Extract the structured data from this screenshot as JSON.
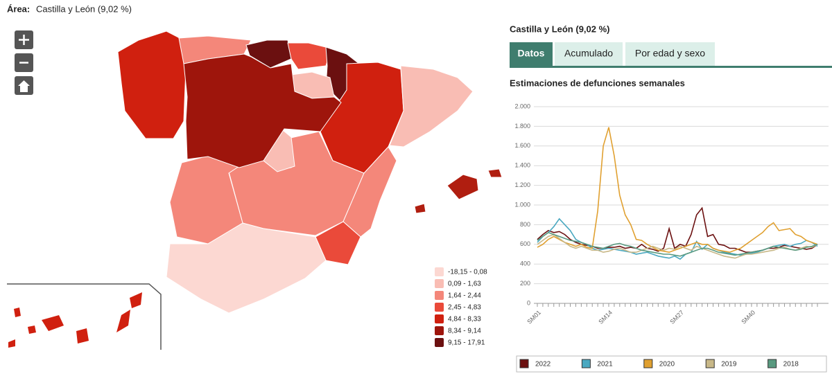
{
  "header": {
    "area_label": "Área:",
    "area_value": "Castilla y León (9,02 %)"
  },
  "map": {
    "legend": [
      {
        "label": "-18,15 - 0,08",
        "color": "#fcd8d2"
      },
      {
        "label": "0,09 - 1,63",
        "color": "#f9bdb4"
      },
      {
        "label": "1,64 - 2,44",
        "color": "#f4877a"
      },
      {
        "label": "2,45 - 4,83",
        "color": "#ea4a3a"
      },
      {
        "label": "4,84 - 8,33",
        "color": "#d0200f"
      },
      {
        "label": "8,34 - 9,14",
        "color": "#9e150c"
      },
      {
        "label": "9,15 - 17,91",
        "color": "#6b1010"
      }
    ]
  },
  "panel": {
    "title": "Castilla y León (9,02 %)",
    "tabs": [
      "Datos",
      "Acumulado",
      "Por edad y sexo"
    ]
  },
  "chart_data": {
    "type": "line",
    "title": "Estimaciones de defunciones semanales",
    "categories": [
      "SM01",
      null,
      null,
      null,
      null,
      null,
      null,
      null,
      null,
      null,
      null,
      null,
      null,
      "SM14",
      null,
      null,
      null,
      null,
      null,
      null,
      null,
      null,
      null,
      null,
      null,
      null,
      "SM27",
      null,
      null,
      null,
      null,
      null,
      null,
      null,
      null,
      null,
      null,
      null,
      null,
      "SM40",
      null,
      null,
      null,
      null,
      null,
      null,
      null,
      null,
      null,
      null,
      null,
      null
    ],
    "ylim": [
      0,
      2000
    ],
    "yticks": [
      0,
      200,
      400,
      600,
      800,
      {
        "value": 1000,
        "label": "1.000"
      },
      {
        "value": 1200,
        "label": "1.200"
      },
      {
        "value": 1400,
        "label": "1.400"
      },
      {
        "value": 1600,
        "label": "1.600"
      },
      {
        "value": 1800,
        "label": "1.800"
      },
      {
        "value": 2000,
        "label": "2.000"
      }
    ],
    "grid": true,
    "legend": "bottom",
    "series": [
      {
        "name": "2022",
        "color": "#6b1010",
        "values": [
          650,
          700,
          740,
          720,
          730,
          700,
          650,
          620,
          600,
          590,
          580,
          560,
          560,
          570,
          570,
          580,
          560,
          570,
          560,
          600,
          560,
          550,
          530,
          560,
          760,
          560,
          600,
          580,
          700,
          900,
          970,
          680,
          700,
          600,
          590,
          560,
          560,
          540,
          520,
          520,
          530,
          540,
          560,
          560,
          570,
          590,
          580,
          570,
          560,
          550,
          560,
          600
        ]
      },
      {
        "name": "2021",
        "color": "#4aa8c0",
        "values": [
          620,
          680,
          720,
          780,
          860,
          800,
          740,
          650,
          620,
          600,
          560,
          540,
          550,
          560,
          550,
          540,
          530,
          520,
          500,
          510,
          520,
          500,
          480,
          470,
          460,
          480,
          450,
          500,
          520,
          630,
          550,
          600,
          560,
          540,
          520,
          510,
          500,
          490,
          500,
          510,
          520,
          540,
          560,
          580,
          590,
          600,
          580,
          600,
          610,
          640,
          620,
          580
        ]
      },
      {
        "name": "2020",
        "color": "#e0a030",
        "values": [
          570,
          600,
          650,
          680,
          650,
          620,
          600,
          580,
          600,
          570,
          560,
          940,
          1600,
          1790,
          1500,
          1100,
          900,
          800,
          650,
          640,
          600,
          570,
          540,
          530,
          520,
          540,
          560,
          580,
          600,
          620,
          600,
          600,
          560,
          540,
          530,
          520,
          540,
          560,
          600,
          640,
          680,
          720,
          780,
          820,
          740,
          750,
          760,
          700,
          680,
          640,
          620,
          600
        ]
      },
      {
        "name": "2019",
        "color": "#c8b888",
        "values": [
          600,
          640,
          680,
          700,
          660,
          620,
          580,
          560,
          580,
          560,
          540,
          540,
          520,
          530,
          550,
          560,
          540,
          520,
          520,
          540,
          560,
          580,
          560,
          540,
          560,
          550,
          580,
          560,
          540,
          580,
          560,
          540,
          520,
          500,
          480,
          470,
          460,
          480,
          500,
          500,
          510,
          520,
          530,
          540,
          560,
          570,
          550,
          540,
          560,
          580,
          570,
          600
        ]
      },
      {
        "name": "2018",
        "color": "#5a9a80",
        "values": [
          640,
          680,
          720,
          700,
          680,
          660,
          640,
          630,
          620,
          600,
          580,
          570,
          560,
          580,
          600,
          610,
          590,
          580,
          560,
          540,
          530,
          520,
          510,
          500,
          500,
          490,
          480,
          500,
          520,
          540,
          560,
          560,
          540,
          520,
          510,
          500,
          490,
          500,
          510,
          520,
          530,
          540,
          560,
          580,
          570,
          560,
          550,
          540,
          550,
          570,
          580,
          600
        ]
      }
    ]
  }
}
